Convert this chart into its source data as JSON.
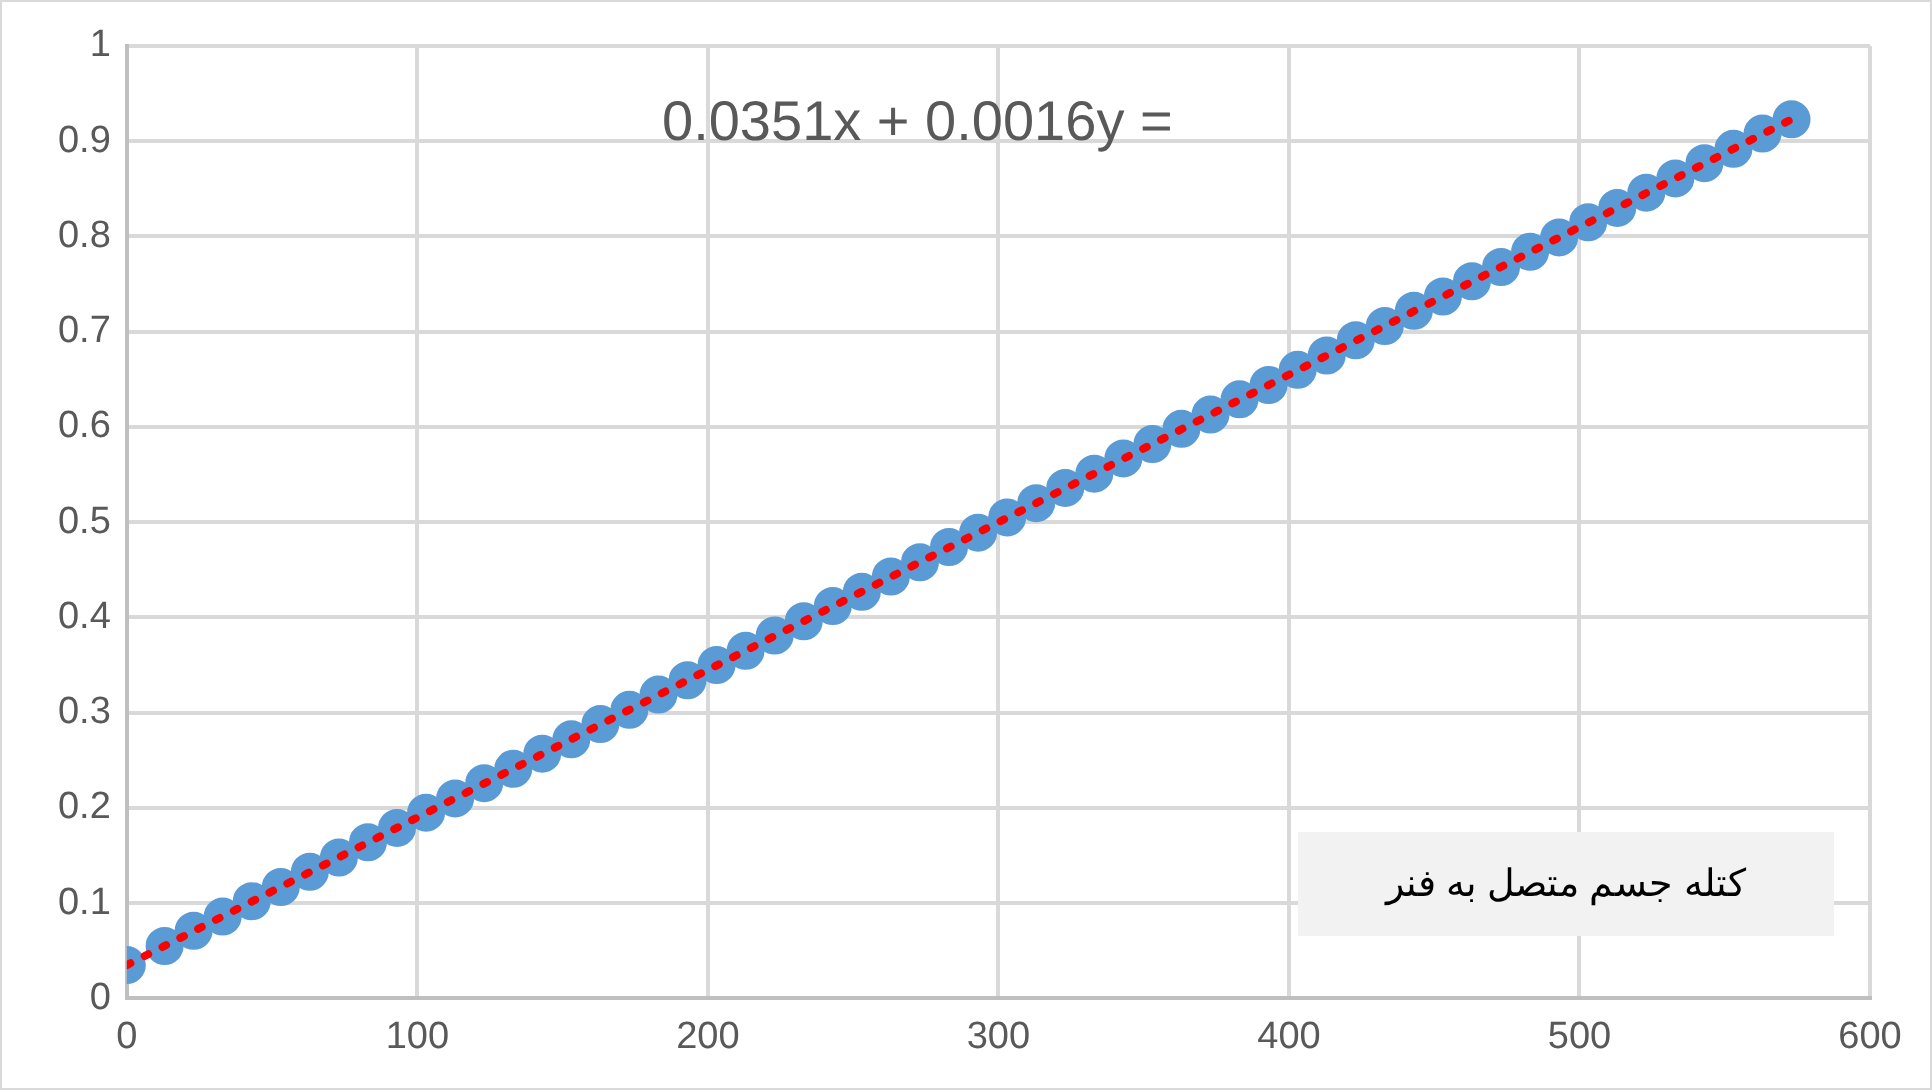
{
  "chart_data": {
    "type": "scatter",
    "xlabel": "کتله جسم متصل به فنر",
    "annotations": [
      "0.0351x + 0.0016y ="
    ],
    "xlim": [
      0,
      600
    ],
    "xticks": [
      0,
      100,
      200,
      300,
      400,
      500,
      600
    ],
    "ylim": [
      0,
      1
    ],
    "yticks": [
      0,
      0.1,
      0.2,
      0.3,
      0.4,
      0.5,
      0.6,
      0.7,
      0.8,
      0.9,
      1
    ],
    "grid": true,
    "legend": false,
    "marker": "circle",
    "series": [
      {
        "color": "#5b9bd5",
        "x": [
          0,
          13,
          23,
          33,
          43,
          53,
          63,
          73,
          83,
          93,
          103,
          113,
          123,
          133,
          143,
          153,
          163,
          173,
          183,
          193,
          203,
          213,
          223,
          233,
          243,
          253,
          263,
          273,
          283,
          293,
          303,
          313,
          323,
          333,
          343,
          353,
          363,
          373,
          383,
          393,
          403,
          413,
          423,
          433,
          443,
          453,
          463,
          473,
          483,
          493,
          503,
          513,
          523,
          533,
          543,
          553,
          563,
          573
        ],
        "values": [
          0.035,
          0.055,
          0.071,
          0.086,
          0.102,
          0.117,
          0.133,
          0.148,
          0.164,
          0.179,
          0.195,
          0.21,
          0.226,
          0.241,
          0.257,
          0.272,
          0.288,
          0.303,
          0.319,
          0.334,
          0.35,
          0.365,
          0.381,
          0.396,
          0.412,
          0.427,
          0.443,
          0.458,
          0.474,
          0.489,
          0.505,
          0.52,
          0.536,
          0.551,
          0.567,
          0.582,
          0.598,
          0.613,
          0.629,
          0.644,
          0.66,
          0.675,
          0.691,
          0.706,
          0.722,
          0.737,
          0.753,
          0.768,
          0.784,
          0.799,
          0.815,
          0.83,
          0.846,
          0.861,
          0.877,
          0.892,
          0.908,
          0.923
        ]
      },
      {
        "type": "line",
        "color": "#ff0000",
        "line_style": "dotted",
        "marker": "none",
        "x": [
          0,
          573
        ],
        "values": [
          0.035,
          0.923
        ]
      }
    ]
  }
}
